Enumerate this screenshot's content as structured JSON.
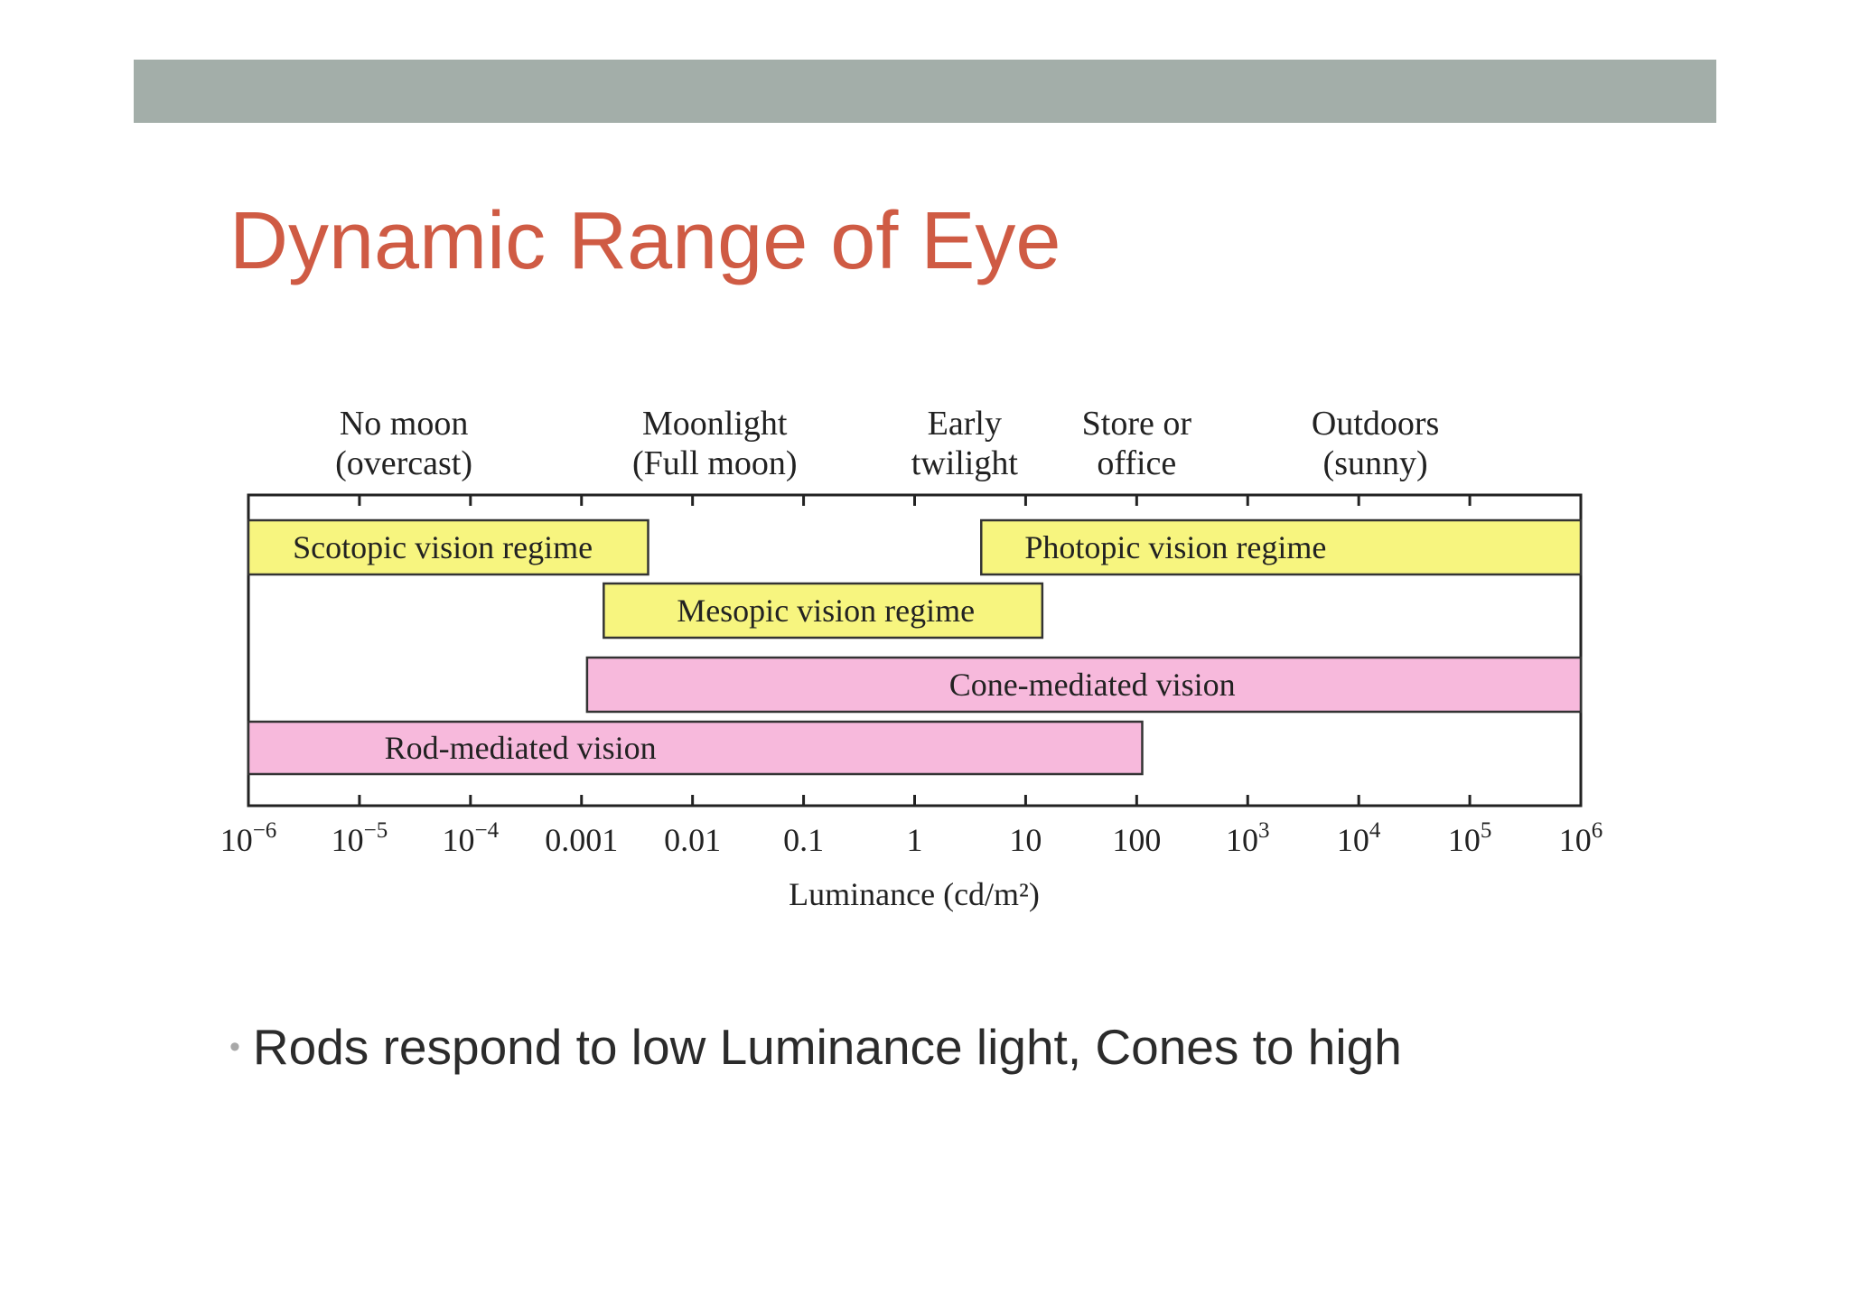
{
  "slide": {
    "title": "Dynamic Range of Eye",
    "header_bar_color": "#a3aea9",
    "title_color": "#cf5b44",
    "bullets": [
      "Rods respond to low Luminance light, Cones to high"
    ]
  },
  "figure": {
    "axis": {
      "label": "Luminance (cd/m²)",
      "scale": "log10",
      "min_exp": -6,
      "max_exp": 6,
      "ticks": [
        {
          "exp": -6,
          "base": "10",
          "sup": "−6"
        },
        {
          "exp": -5,
          "base": "10",
          "sup": "−5"
        },
        {
          "exp": -4,
          "base": "10",
          "sup": "−4"
        },
        {
          "exp": -3,
          "base": "0.001",
          "sup": ""
        },
        {
          "exp": -2,
          "base": "0.01",
          "sup": ""
        },
        {
          "exp": -1,
          "base": "0.1",
          "sup": ""
        },
        {
          "exp": 0,
          "base": "1",
          "sup": ""
        },
        {
          "exp": 1,
          "base": "10",
          "sup": ""
        },
        {
          "exp": 2,
          "base": "100",
          "sup": ""
        },
        {
          "exp": 3,
          "base": "10",
          "sup": "3"
        },
        {
          "exp": 4,
          "base": "10",
          "sup": "4"
        },
        {
          "exp": 5,
          "base": "10",
          "sup": "5"
        },
        {
          "exp": 6,
          "base": "10",
          "sup": "6"
        }
      ]
    },
    "conditions": [
      {
        "name": "no-moon",
        "line1": "No moon",
        "line2": "(overcast)",
        "at_exp": -4.6
      },
      {
        "name": "moonlight",
        "line1": "Moonlight",
        "line2": "(Full moon)",
        "at_exp": -1.8
      },
      {
        "name": "early-twilight",
        "line1": "Early",
        "line2": "twilight",
        "at_exp": 0.45
      },
      {
        "name": "store-office",
        "line1": "Store or",
        "line2": "office",
        "at_exp": 2.0
      },
      {
        "name": "outdoors",
        "line1": "Outdoors",
        "line2": "(sunny)",
        "at_exp": 4.15
      }
    ],
    "regimes": [
      {
        "name": "scotopic",
        "label": "Scotopic vision regime",
        "from_exp": -6,
        "to_exp": -2.4,
        "color": "#f7f57f",
        "label_at_exp": -4.25
      },
      {
        "name": "photopic",
        "label": "Photopic vision regime",
        "from_exp": 0.6,
        "to_exp": 6,
        "color": "#f7f57f",
        "label_at_exp": 2.35
      },
      {
        "name": "mesopic",
        "label": "Mesopic vision regime",
        "from_exp": -2.8,
        "to_exp": 1.15,
        "color": "#f7f57f",
        "label_at_exp": -0.8
      },
      {
        "name": "cone-mediated",
        "label": "Cone-mediated vision",
        "from_exp": -2.95,
        "to_exp": 6,
        "color": "#f7b9dc",
        "label_at_exp": 1.6
      },
      {
        "name": "rod-mediated",
        "label": "Rod-mediated vision",
        "from_exp": -6,
        "to_exp": 2.05,
        "color": "#f7b9dc",
        "label_at_exp": -3.55
      }
    ]
  }
}
